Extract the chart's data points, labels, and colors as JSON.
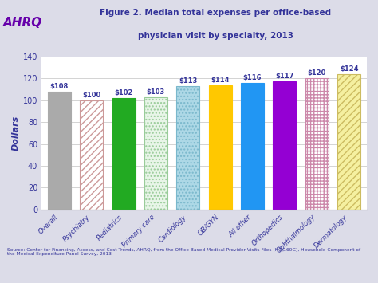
{
  "categories": [
    "Overall",
    "Psychiatry",
    "Pediatrics",
    "Primary care",
    "Cardiology",
    "OB/GYN",
    "All other",
    "Orthopedics",
    "Ophthalmology",
    "Dermatology"
  ],
  "values": [
    108,
    100,
    102,
    103,
    113,
    114,
    116,
    117,
    120,
    124
  ],
  "labels": [
    "$108",
    "$100",
    "$102",
    "$103",
    "$113",
    "$114",
    "$116",
    "$117",
    "$120",
    "$124"
  ],
  "bar_facecolors": [
    "#aaaaaa",
    "#ffffff",
    "#22aa22",
    "#e8f5e8",
    "#add8e6",
    "#ffc800",
    "#2196f3",
    "#9400d3",
    "#ffffff",
    "#f5f0a0"
  ],
  "bar_edgecolors": [
    "#aaaaaa",
    "#cc9999",
    "#22aa22",
    "#99cc99",
    "#7ab8cc",
    "#ffc800",
    "#2196f3",
    "#9400d3",
    "#cc88aa",
    "#ccbb60"
  ],
  "bar_hatches": [
    "",
    "////",
    "",
    "....",
    "....",
    "",
    "",
    "",
    "++++",
    "////"
  ],
  "title_line1": "Figure 2. Median total expenses per office-based",
  "title_line2": "physician visit by specialty, 2013",
  "ylabel": "Dollars",
  "ylim": [
    0,
    140
  ],
  "yticks": [
    0,
    20,
    40,
    60,
    80,
    100,
    120,
    140
  ],
  "source_text": "Source: Center for Financing, Access, and Cost Trends, AHRQ, from the Office-Based Medical Provider Visits Files (HC-160G), Household Component of\nthe Medical Expenditure Panel Survey, 2013",
  "outer_bg_color": "#dcdce8",
  "header_bg_color": "#dcdce8",
  "plot_bg_color": "#f0f0f4",
  "chart_bg_color": "#ffffff",
  "title_color": "#333399",
  "bar_label_color": "#333399",
  "ylabel_color": "#333399",
  "ytick_color": "#333399",
  "xtick_color": "#333399",
  "ahrq_color": "#6600aa",
  "source_color": "#333399"
}
